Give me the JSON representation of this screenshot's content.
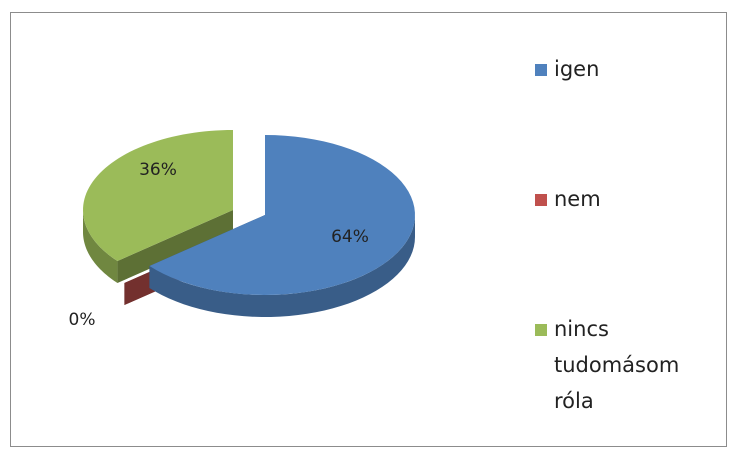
{
  "chart_data": {
    "type": "pie",
    "categories": [
      "igen",
      "nem",
      "nincs tudomásom róla"
    ],
    "values": [
      64,
      0,
      36
    ],
    "value_labels": [
      "64%",
      "0%",
      "36%"
    ],
    "colors": [
      "#4f81bd",
      "#c0504d",
      "#9bbb59"
    ],
    "legend": "right"
  }
}
